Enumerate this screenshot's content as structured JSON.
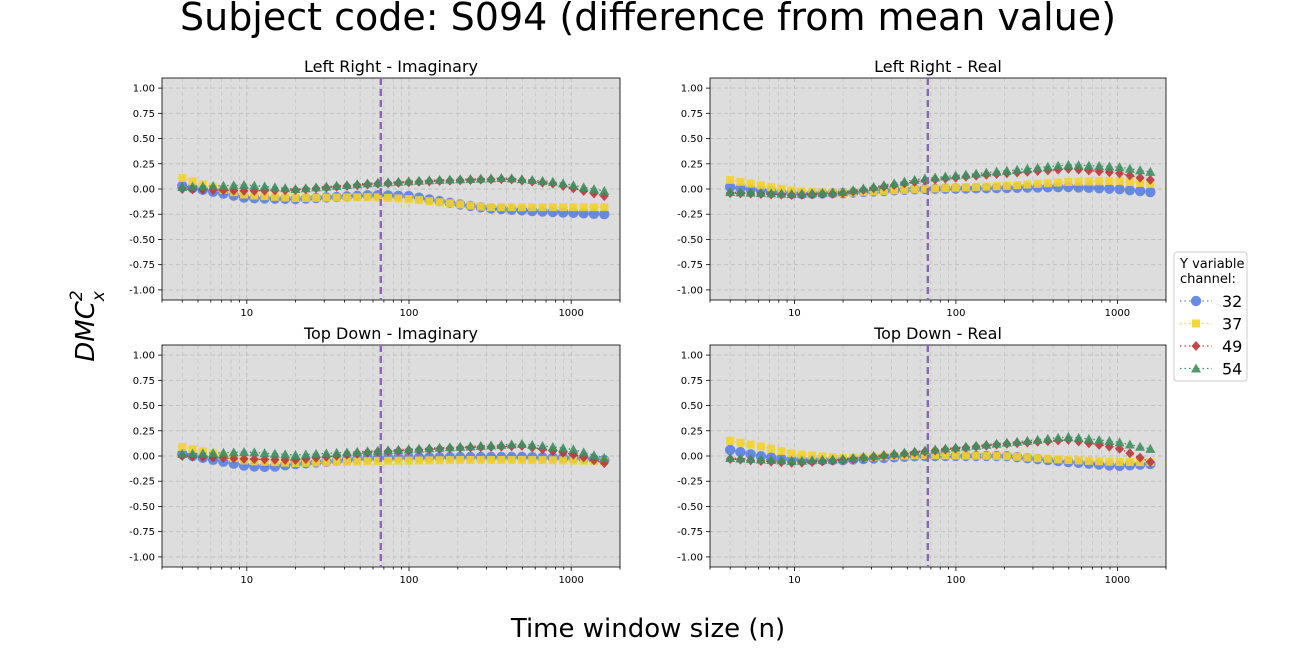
{
  "figure": {
    "suptitle": "Subject code: S094 (difference from mean value)",
    "xlabel": "Time window size (n)",
    "ylabel": "DMC",
    "ylabel_sup": "2",
    "ylabel_sub": "x",
    "background": "#dddddd",
    "vline_color": "#8b66b0",
    "vline_x": 67
  },
  "legend": {
    "title_line1": "Y variable",
    "title_line2": "channel:",
    "placement": "right-center",
    "entries": [
      {
        "label": "32",
        "color": "#5b7fe0",
        "marker": "circle"
      },
      {
        "label": "37",
        "color": "#f3d22c",
        "marker": "square"
      },
      {
        "label": "49",
        "color": "#b83a3a",
        "marker": "diamond"
      },
      {
        "label": "54",
        "color": "#3e8f62",
        "marker": "triangle"
      }
    ]
  },
  "chart_data": [
    {
      "type": "scatter",
      "title": "Left Right - Imaginary",
      "xscale": "log",
      "xlim": [
        3,
        2000
      ],
      "ylim": [
        -1.1,
        1.1
      ],
      "xticks": [
        "10",
        "100",
        "1000"
      ],
      "yticks": [
        "1.00",
        "0.75",
        "0.50",
        "0.25",
        "0.00",
        "-0.25",
        "-0.50",
        "-0.75",
        "-1.00"
      ],
      "grid": true,
      "series": [
        {
          "name": "32",
          "anchors": [
            [
              4,
              0.03
            ],
            [
              10,
              -0.09
            ],
            [
              20,
              -0.1
            ],
            [
              60,
              -0.06
            ],
            [
              100,
              -0.07
            ],
            [
              200,
              -0.15
            ],
            [
              300,
              -0.19
            ],
            [
              600,
              -0.22
            ],
            [
              1600,
              -0.25
            ]
          ]
        },
        {
          "name": "37",
          "anchors": [
            [
              4,
              0.11
            ],
            [
              6,
              0.02
            ],
            [
              10,
              -0.06
            ],
            [
              20,
              -0.09
            ],
            [
              60,
              -0.08
            ],
            [
              100,
              -0.1
            ],
            [
              200,
              -0.15
            ],
            [
              300,
              -0.18
            ],
            [
              600,
              -0.18
            ],
            [
              1600,
              -0.18
            ]
          ]
        },
        {
          "name": "49",
          "anchors": [
            [
              4,
              0.0
            ],
            [
              10,
              -0.02
            ],
            [
              20,
              -0.01
            ],
            [
              60,
              0.05
            ],
            [
              150,
              0.08
            ],
            [
              400,
              0.1
            ],
            [
              800,
              0.05
            ],
            [
              1600,
              -0.07
            ]
          ]
        },
        {
          "name": "54",
          "anchors": [
            [
              4,
              0.02
            ],
            [
              10,
              0.04
            ],
            [
              20,
              0.0
            ],
            [
              60,
              0.06
            ],
            [
              150,
              0.09
            ],
            [
              400,
              0.11
            ],
            [
              800,
              0.07
            ],
            [
              1600,
              -0.02
            ]
          ]
        }
      ]
    },
    {
      "type": "scatter",
      "title": "Left Right - Real",
      "xscale": "log",
      "xlim": [
        3,
        2000
      ],
      "ylim": [
        -1.1,
        1.1
      ],
      "xticks": [
        "10",
        "100",
        "1000"
      ],
      "yticks": [
        "1.00",
        "0.75",
        "0.50",
        "0.25",
        "0.00",
        "-0.25",
        "-0.50",
        "-0.75",
        "-1.00"
      ],
      "grid": true,
      "series": [
        {
          "name": "32",
          "anchors": [
            [
              4,
              0.02
            ],
            [
              10,
              -0.05
            ],
            [
              20,
              -0.04
            ],
            [
              60,
              0.0
            ],
            [
              200,
              0.01
            ],
            [
              500,
              0.02
            ],
            [
              1000,
              0.0
            ],
            [
              1600,
              -0.03
            ]
          ]
        },
        {
          "name": "37",
          "anchors": [
            [
              4,
              0.09
            ],
            [
              6,
              0.04
            ],
            [
              10,
              -0.02
            ],
            [
              20,
              -0.04
            ],
            [
              60,
              0.0
            ],
            [
              200,
              0.03
            ],
            [
              500,
              0.07
            ],
            [
              1000,
              0.08
            ],
            [
              1600,
              0.05
            ]
          ]
        },
        {
          "name": "49",
          "anchors": [
            [
              4,
              -0.04
            ],
            [
              10,
              -0.06
            ],
            [
              20,
              -0.04
            ],
            [
              60,
              0.08
            ],
            [
              150,
              0.14
            ],
            [
              500,
              0.2
            ],
            [
              1000,
              0.16
            ],
            [
              1600,
              0.09
            ]
          ]
        },
        {
          "name": "54",
          "anchors": [
            [
              4,
              -0.03
            ],
            [
              10,
              -0.05
            ],
            [
              20,
              -0.03
            ],
            [
              60,
              0.1
            ],
            [
              150,
              0.16
            ],
            [
              500,
              0.24
            ],
            [
              1000,
              0.22
            ],
            [
              1600,
              0.17
            ]
          ]
        }
      ]
    },
    {
      "type": "scatter",
      "title": "Top Down - Imaginary",
      "xscale": "log",
      "xlim": [
        3,
        2000
      ],
      "ylim": [
        -1.1,
        1.1
      ],
      "xticks": [
        "10",
        "100",
        "1000"
      ],
      "yticks": [
        "1.00",
        "0.75",
        "0.50",
        "0.25",
        "0.00",
        "-0.25",
        "-0.50",
        "-0.75",
        "-1.00"
      ],
      "grid": true,
      "series": [
        {
          "name": "32",
          "anchors": [
            [
              4,
              0.02
            ],
            [
              10,
              -0.1
            ],
            [
              14,
              -0.11
            ],
            [
              20,
              -0.08
            ],
            [
              60,
              -0.02
            ],
            [
              200,
              -0.01
            ],
            [
              500,
              -0.01
            ],
            [
              1000,
              -0.02
            ],
            [
              1600,
              -0.04
            ]
          ]
        },
        {
          "name": "37",
          "anchors": [
            [
              4,
              0.09
            ],
            [
              6,
              0.03
            ],
            [
              10,
              -0.05
            ],
            [
              20,
              -0.07
            ],
            [
              60,
              -0.05
            ],
            [
              200,
              -0.04
            ],
            [
              600,
              -0.04
            ],
            [
              1600,
              -0.05
            ]
          ]
        },
        {
          "name": "49",
          "anchors": [
            [
              4,
              0.0
            ],
            [
              10,
              -0.03
            ],
            [
              20,
              -0.04
            ],
            [
              60,
              0.04
            ],
            [
              200,
              0.08
            ],
            [
              500,
              0.1
            ],
            [
              1000,
              0.02
            ],
            [
              1600,
              -0.07
            ]
          ]
        },
        {
          "name": "54",
          "anchors": [
            [
              4,
              0.02
            ],
            [
              10,
              0.04
            ],
            [
              20,
              0.01
            ],
            [
              60,
              0.05
            ],
            [
              200,
              0.09
            ],
            [
              500,
              0.12
            ],
            [
              1000,
              0.07
            ],
            [
              1600,
              -0.02
            ]
          ]
        }
      ]
    },
    {
      "type": "scatter",
      "title": "Top Down - Real",
      "xscale": "log",
      "xlim": [
        3,
        2000
      ],
      "ylim": [
        -1.1,
        1.1
      ],
      "xticks": [
        "10",
        "100",
        "1000"
      ],
      "yticks": [
        "1.00",
        "0.75",
        "0.50",
        "0.25",
        "0.00",
        "-0.25",
        "-0.50",
        "-0.75",
        "-1.00"
      ],
      "grid": true,
      "series": [
        {
          "name": "32",
          "anchors": [
            [
              4,
              0.06
            ],
            [
              6,
              0.0
            ],
            [
              10,
              -0.04
            ],
            [
              20,
              -0.04
            ],
            [
              60,
              0.0
            ],
            [
              200,
              0.0
            ],
            [
              500,
              -0.06
            ],
            [
              1000,
              -0.1
            ],
            [
              1600,
              -0.08
            ]
          ]
        },
        {
          "name": "37",
          "anchors": [
            [
              4,
              0.15
            ],
            [
              6,
              0.1
            ],
            [
              10,
              0.02
            ],
            [
              20,
              -0.02
            ],
            [
              60,
              0.01
            ],
            [
              200,
              0.0
            ],
            [
              500,
              -0.04
            ],
            [
              1000,
              -0.06
            ],
            [
              1600,
              -0.06
            ]
          ]
        },
        {
          "name": "49",
          "anchors": [
            [
              4,
              -0.03
            ],
            [
              10,
              -0.07
            ],
            [
              20,
              -0.04
            ],
            [
              60,
              0.04
            ],
            [
              200,
              0.12
            ],
            [
              500,
              0.16
            ],
            [
              1000,
              0.08
            ],
            [
              1600,
              -0.06
            ]
          ]
        },
        {
          "name": "54",
          "anchors": [
            [
              4,
              -0.02
            ],
            [
              10,
              -0.05
            ],
            [
              20,
              -0.03
            ],
            [
              60,
              0.05
            ],
            [
              200,
              0.13
            ],
            [
              500,
              0.19
            ],
            [
              1000,
              0.14
            ],
            [
              1600,
              0.07
            ]
          ]
        }
      ]
    }
  ]
}
